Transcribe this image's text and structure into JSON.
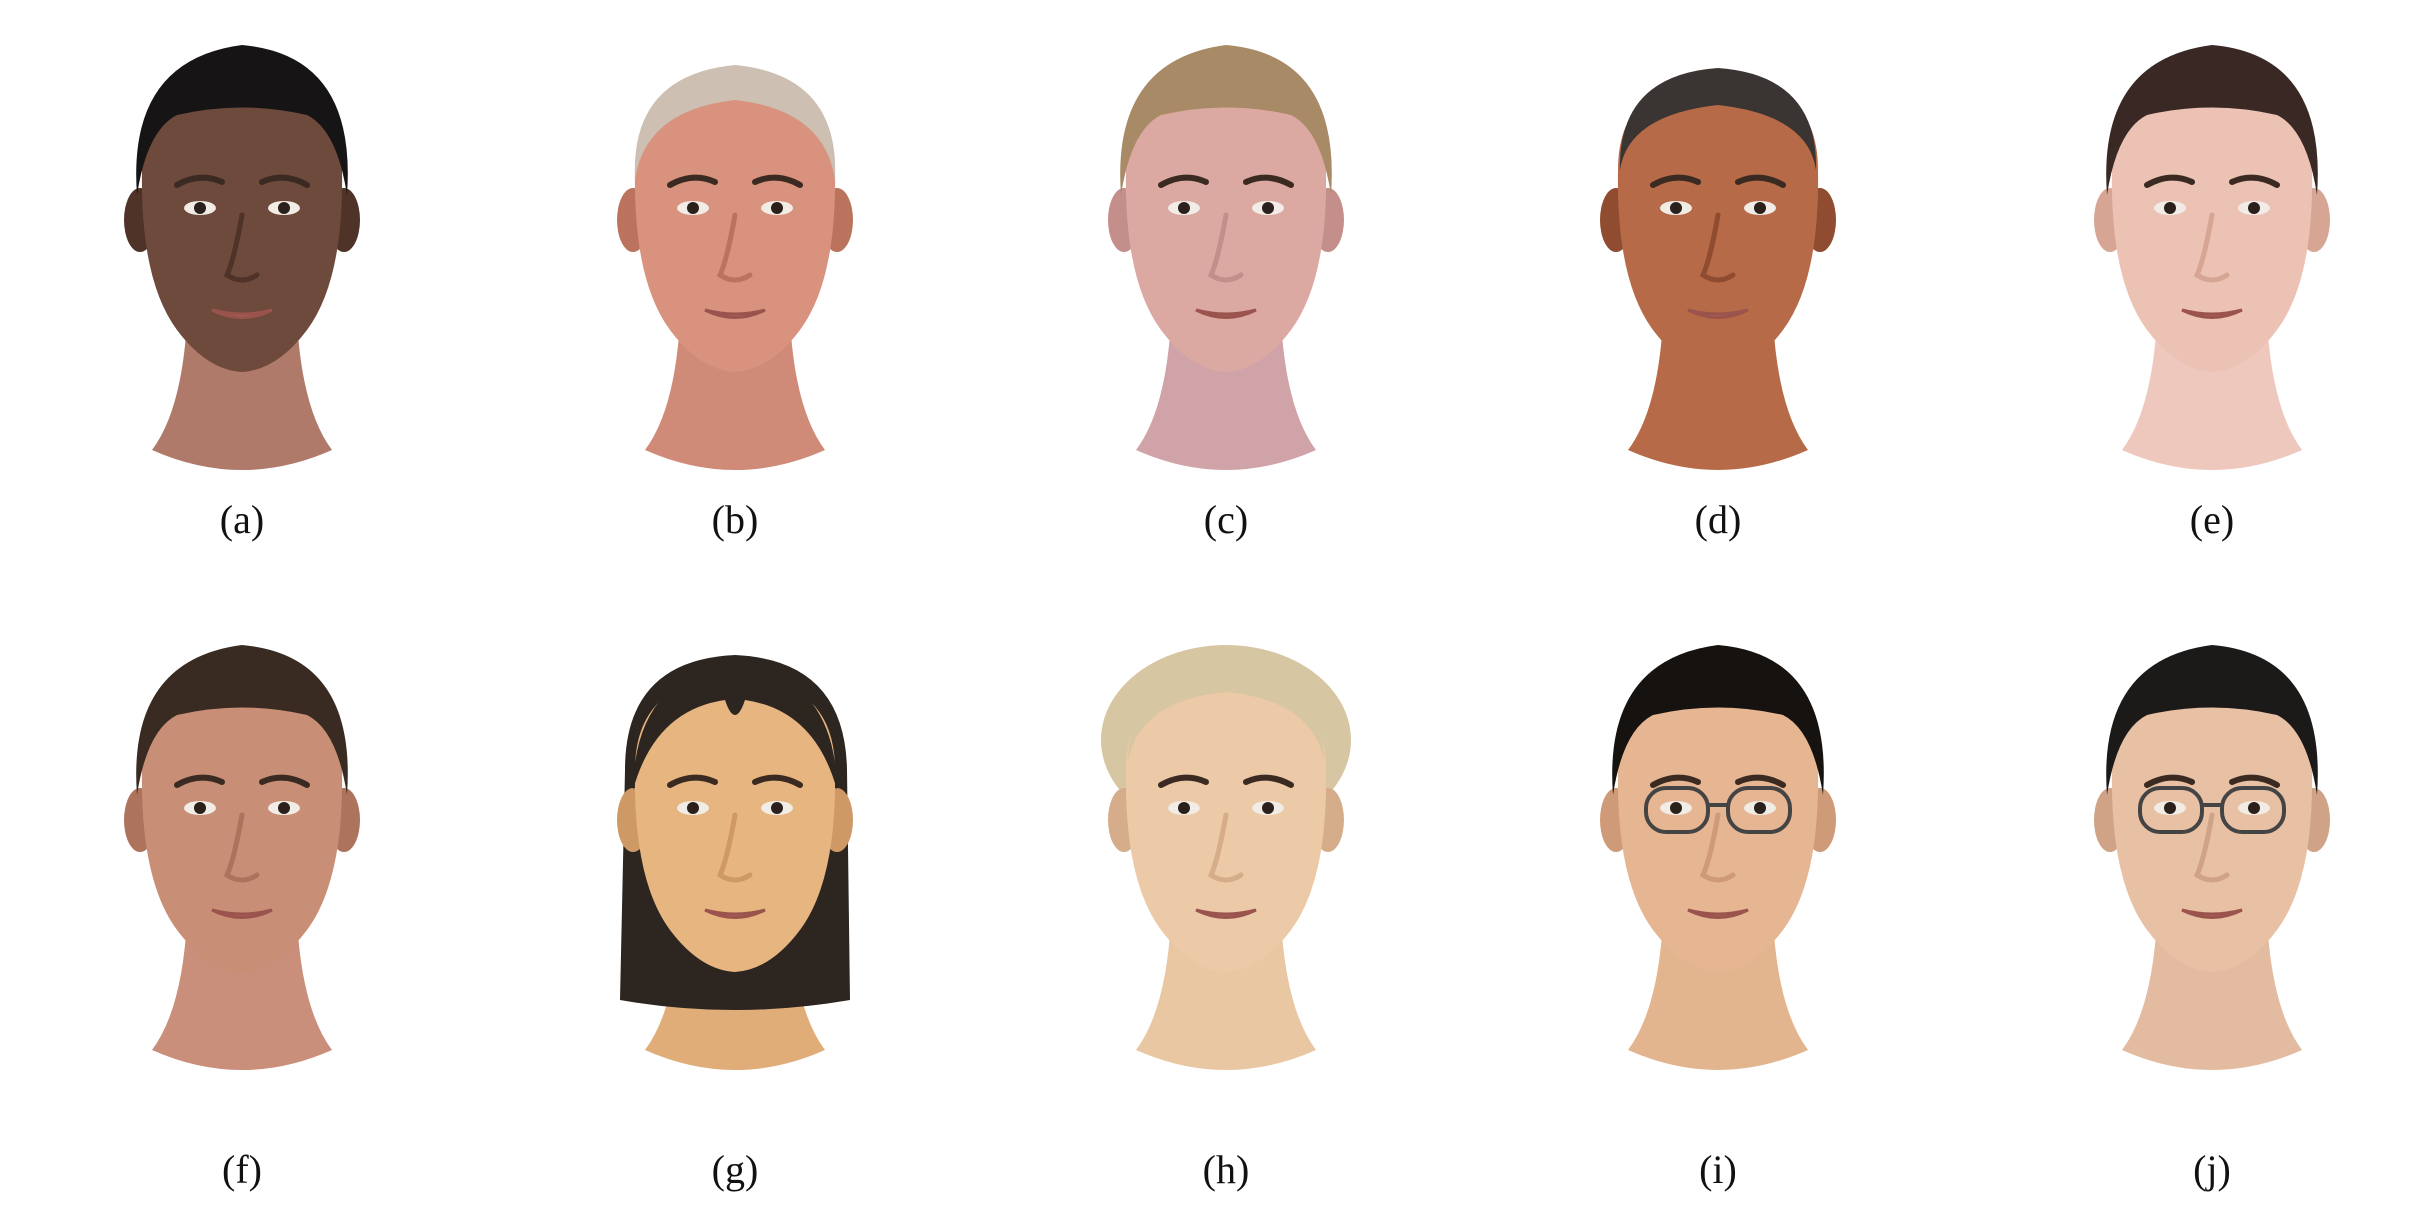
{
  "figure": {
    "panels": [
      {
        "label": "(a)",
        "subject": "man with dark skin and black hair",
        "skin": "#6e4a3c",
        "skin_shade": "#4f3228",
        "hair": "#161414",
        "hair_style": "short-top",
        "neck": "#b07a6a",
        "glasses": false
      },
      {
        "label": "(b)",
        "subject": "older man with white hair",
        "skin": "#d8927d",
        "skin_shade": "#bb735e",
        "hair": "#cdbfb2",
        "hair_style": "thin",
        "neck": "#d08a78",
        "glasses": false
      },
      {
        "label": "(c)",
        "subject": "young man with light brown hair smiling",
        "skin": "#dca9a2",
        "skin_shade": "#c48f8a",
        "hair": "#a88b66",
        "hair_style": "short-top",
        "neck": "#cfa3a8",
        "glasses": false
      },
      {
        "label": "(d)",
        "subject": "man with short grey hair",
        "skin": "#b66a47",
        "skin_shade": "#8f4c30",
        "hair": "#3a3532",
        "hair_style": "buzz",
        "neck": "#b66a47",
        "glasses": false
      },
      {
        "label": "(e)",
        "subject": "man with dark brown hair",
        "skin": "#ecc2b4",
        "skin_shade": "#d7a594",
        "hair": "#3a2824",
        "hair_style": "short-top",
        "neck": "#eec8bc",
        "glasses": false
      },
      {
        "label": "(f)",
        "subject": "man with dark brown hair",
        "skin": "#c98f76",
        "skin_shade": "#ad735c",
        "hair": "#3a2b22",
        "hair_style": "short-top",
        "neck": "#c98f7a",
        "glasses": false
      },
      {
        "label": "(g)",
        "subject": "young woman with dark hair tied back",
        "skin": "#e7b57f",
        "skin_shade": "#cf9966",
        "hair": "#2c2520",
        "hair_style": "long",
        "neck": "#e0ad78",
        "glasses": false
      },
      {
        "label": "(h)",
        "subject": "man with blond hair",
        "skin": "#ecc9a7",
        "skin_shade": "#d6ad8a",
        "hair": "#d7c6a2",
        "hair_style": "tied",
        "neck": "#e8c7a2",
        "glasses": false
      },
      {
        "label": "(i)",
        "subject": "young man with glasses and black hair",
        "skin": "#e6b592",
        "skin_shade": "#cf9a78",
        "hair": "#15120f",
        "hair_style": "short-top",
        "neck": "#e3b58e",
        "glasses": true
      },
      {
        "label": "(j)",
        "subject": "man with glasses and black hair",
        "skin": "#e8c0a3",
        "skin_shade": "#d0a386",
        "hair": "#1c1a19",
        "hair_style": "spiky",
        "neck": "#e2bba0",
        "glasses": true
      }
    ]
  }
}
